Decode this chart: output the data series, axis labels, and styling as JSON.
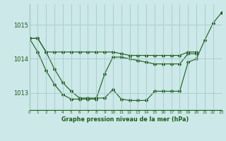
{
  "title": "Graphe pression niveau de la mer (hPa)",
  "bg_color": "#cce8e8",
  "grid_color": "#aacece",
  "line_color": "#1a5c1a",
  "flat_x": [
    0,
    1,
    2,
    3,
    4,
    5,
    6,
    7,
    8,
    9,
    10,
    11,
    12,
    13,
    14,
    15,
    16,
    17,
    18,
    19,
    20
  ],
  "flat_y": [
    1014.6,
    1014.6,
    1014.2,
    1014.2,
    1014.2,
    1014.2,
    1014.2,
    1014.2,
    1014.2,
    1014.2,
    1014.2,
    1014.15,
    1014.1,
    1014.1,
    1014.1,
    1014.1,
    1014.1,
    1014.1,
    1014.1,
    1014.2,
    1014.2
  ],
  "u_x": [
    0,
    1,
    2,
    3,
    4,
    5,
    6,
    7,
    8,
    9,
    10,
    11,
    12,
    13,
    14,
    15,
    16,
    17,
    18,
    19,
    20,
    21,
    22,
    23
  ],
  "u_y": [
    1014.6,
    1014.6,
    1014.2,
    1013.7,
    1013.3,
    1013.05,
    1012.85,
    1012.85,
    1012.85,
    1012.85,
    1013.1,
    1012.82,
    1012.78,
    1012.78,
    1012.78,
    1013.05,
    1013.05,
    1013.05,
    1013.05,
    1013.9,
    1014.0,
    1014.55,
    1015.05,
    1015.35
  ],
  "mid_x": [
    0,
    1,
    2,
    3,
    4,
    5,
    6,
    7,
    8,
    9,
    10,
    11,
    12,
    13,
    14,
    15,
    16,
    17,
    18,
    19,
    20
  ],
  "mid_y": [
    1014.6,
    1014.2,
    1013.65,
    1013.25,
    1012.95,
    1012.82,
    1012.82,
    1012.82,
    1012.82,
    1013.55,
    1014.05,
    1014.05,
    1014.0,
    1013.95,
    1013.9,
    1013.85,
    1013.85,
    1013.85,
    1013.85,
    1014.15,
    1014.15
  ],
  "xlim": [
    0,
    23
  ],
  "ylim": [
    1012.5,
    1015.6
  ],
  "yticks": [
    1013,
    1014,
    1015
  ],
  "xticks": [
    0,
    1,
    2,
    3,
    4,
    5,
    6,
    7,
    8,
    9,
    10,
    11,
    12,
    13,
    14,
    15,
    16,
    17,
    18,
    19,
    20,
    21,
    22,
    23
  ]
}
